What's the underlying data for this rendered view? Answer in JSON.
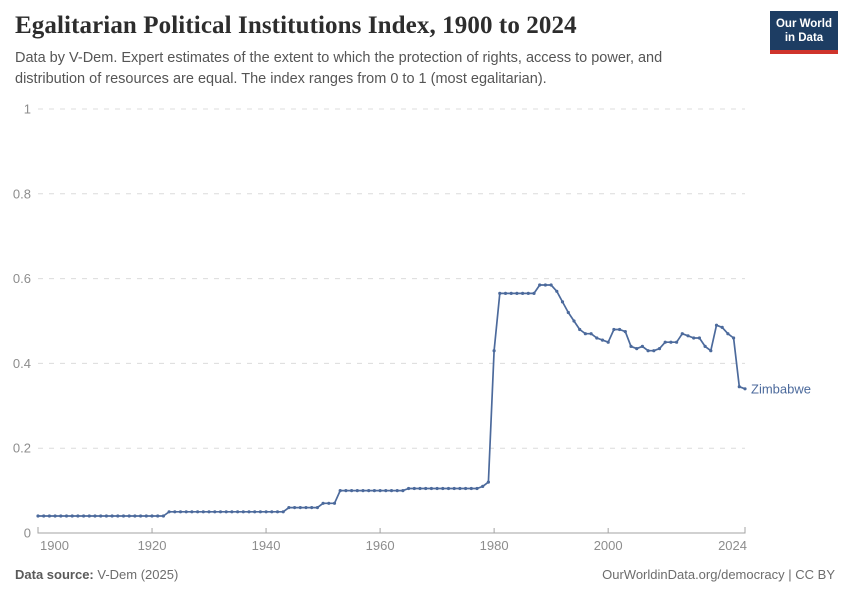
{
  "header": {
    "title": "Egalitarian Political Institutions Index, 1900 to 2024",
    "subtitle": "Data by V-Dem. Expert estimates of the extent to which the protection of rights, access to power, and distribution of resources are equal. The index ranges from 0 to 1 (most egalitarian).",
    "logo": {
      "line1": "Our World",
      "line2": "in Data"
    }
  },
  "footer": {
    "source_label": "Data source:",
    "source_value": " V-Dem (2025)",
    "credit": "OurWorldinData.org/democracy | CC BY"
  },
  "colors": {
    "line": "#4C6A9C",
    "grid": "#dcdcdc",
    "axis": "#a3a3a3",
    "tick_label": "#8d8d8d",
    "logo_bg": "#1d3d63",
    "logo_stripe": "#cf342c"
  },
  "chart_data": {
    "type": "line",
    "title": "Egalitarian Political Institutions Index, 1900 to 2024",
    "xlabel": "",
    "ylabel": "",
    "xlim": [
      1900,
      2024
    ],
    "ylim": [
      0,
      1
    ],
    "xticks": [
      1900,
      1920,
      1940,
      1960,
      1980,
      2000,
      2024
    ],
    "yticks": [
      0,
      0.2,
      0.4,
      0.6,
      0.8,
      1
    ],
    "grid": "horizontal-dashed",
    "legend_position": "line-end-label",
    "markers": true,
    "series": [
      {
        "name": "Zimbabwe",
        "color": "#4C6A9C",
        "points": [
          [
            1900,
            0.04
          ],
          [
            1901,
            0.04
          ],
          [
            1902,
            0.04
          ],
          [
            1903,
            0.04
          ],
          [
            1904,
            0.04
          ],
          [
            1905,
            0.04
          ],
          [
            1906,
            0.04
          ],
          [
            1907,
            0.04
          ],
          [
            1908,
            0.04
          ],
          [
            1909,
            0.04
          ],
          [
            1910,
            0.04
          ],
          [
            1911,
            0.04
          ],
          [
            1912,
            0.04
          ],
          [
            1913,
            0.04
          ],
          [
            1914,
            0.04
          ],
          [
            1915,
            0.04
          ],
          [
            1916,
            0.04
          ],
          [
            1917,
            0.04
          ],
          [
            1918,
            0.04
          ],
          [
            1919,
            0.04
          ],
          [
            1920,
            0.04
          ],
          [
            1921,
            0.04
          ],
          [
            1922,
            0.04
          ],
          [
            1923,
            0.05
          ],
          [
            1924,
            0.05
          ],
          [
            1925,
            0.05
          ],
          [
            1926,
            0.05
          ],
          [
            1927,
            0.05
          ],
          [
            1928,
            0.05
          ],
          [
            1929,
            0.05
          ],
          [
            1930,
            0.05
          ],
          [
            1931,
            0.05
          ],
          [
            1932,
            0.05
          ],
          [
            1933,
            0.05
          ],
          [
            1934,
            0.05
          ],
          [
            1935,
            0.05
          ],
          [
            1936,
            0.05
          ],
          [
            1937,
            0.05
          ],
          [
            1938,
            0.05
          ],
          [
            1939,
            0.05
          ],
          [
            1940,
            0.05
          ],
          [
            1941,
            0.05
          ],
          [
            1942,
            0.05
          ],
          [
            1943,
            0.05
          ],
          [
            1944,
            0.06
          ],
          [
            1945,
            0.06
          ],
          [
            1946,
            0.06
          ],
          [
            1947,
            0.06
          ],
          [
            1948,
            0.06
          ],
          [
            1949,
            0.06
          ],
          [
            1950,
            0.07
          ],
          [
            1951,
            0.07
          ],
          [
            1952,
            0.07
          ],
          [
            1953,
            0.1
          ],
          [
            1954,
            0.1
          ],
          [
            1955,
            0.1
          ],
          [
            1956,
            0.1
          ],
          [
            1957,
            0.1
          ],
          [
            1958,
            0.1
          ],
          [
            1959,
            0.1
          ],
          [
            1960,
            0.1
          ],
          [
            1961,
            0.1
          ],
          [
            1962,
            0.1
          ],
          [
            1963,
            0.1
          ],
          [
            1964,
            0.1
          ],
          [
            1965,
            0.105
          ],
          [
            1966,
            0.105
          ],
          [
            1967,
            0.105
          ],
          [
            1968,
            0.105
          ],
          [
            1969,
            0.105
          ],
          [
            1970,
            0.105
          ],
          [
            1971,
            0.105
          ],
          [
            1972,
            0.105
          ],
          [
            1973,
            0.105
          ],
          [
            1974,
            0.105
          ],
          [
            1975,
            0.105
          ],
          [
            1976,
            0.105
          ],
          [
            1977,
            0.105
          ],
          [
            1978,
            0.11
          ],
          [
            1979,
            0.12
          ],
          [
            1980,
            0.43
          ],
          [
            1981,
            0.565
          ],
          [
            1982,
            0.565
          ],
          [
            1983,
            0.565
          ],
          [
            1984,
            0.565
          ],
          [
            1985,
            0.565
          ],
          [
            1986,
            0.565
          ],
          [
            1987,
            0.565
          ],
          [
            1988,
            0.585
          ],
          [
            1989,
            0.585
          ],
          [
            1990,
            0.585
          ],
          [
            1991,
            0.57
          ],
          [
            1992,
            0.545
          ],
          [
            1993,
            0.52
          ],
          [
            1994,
            0.5
          ],
          [
            1995,
            0.48
          ],
          [
            1996,
            0.47
          ],
          [
            1997,
            0.47
          ],
          [
            1998,
            0.46
          ],
          [
            1999,
            0.455
          ],
          [
            2000,
            0.45
          ],
          [
            2001,
            0.48
          ],
          [
            2002,
            0.48
          ],
          [
            2003,
            0.475
          ],
          [
            2004,
            0.44
          ],
          [
            2005,
            0.435
          ],
          [
            2006,
            0.44
          ],
          [
            2007,
            0.43
          ],
          [
            2008,
            0.43
          ],
          [
            2009,
            0.435
          ],
          [
            2010,
            0.45
          ],
          [
            2011,
            0.45
          ],
          [
            2012,
            0.45
          ],
          [
            2013,
            0.47
          ],
          [
            2014,
            0.465
          ],
          [
            2015,
            0.46
          ],
          [
            2016,
            0.46
          ],
          [
            2017,
            0.44
          ],
          [
            2018,
            0.43
          ],
          [
            2019,
            0.49
          ],
          [
            2020,
            0.485
          ],
          [
            2021,
            0.47
          ],
          [
            2022,
            0.46
          ],
          [
            2023,
            0.345
          ],
          [
            2024,
            0.34
          ]
        ]
      }
    ]
  }
}
